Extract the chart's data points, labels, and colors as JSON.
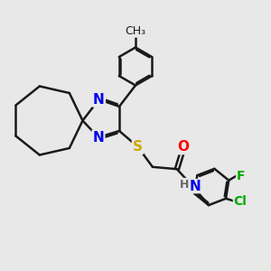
{
  "bg_color": "#e8e8e8",
  "bond_color": "#1a1a1a",
  "bond_width": 1.8,
  "atom_colors": {
    "N": "#0000ee",
    "S": "#ccaa00",
    "O": "#ff0000",
    "Cl": "#00aa00",
    "F": "#00aa00",
    "H": "#666666",
    "C": "#1a1a1a"
  }
}
